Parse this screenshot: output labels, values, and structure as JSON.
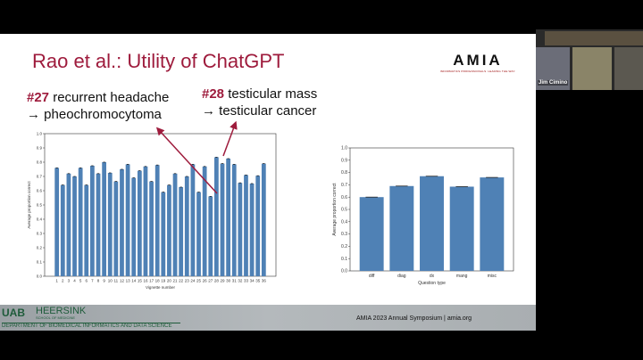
{
  "slide": {
    "title": "Rao et al.:  Utility of ChatGPT",
    "annotation_27": {
      "num": "#27",
      "line1": "recurrent headache",
      "line2": "→ pheochromocytoma"
    },
    "annotation_28": {
      "num": "#28",
      "line1": "testicular mass",
      "line2": "→ testicular cancer"
    },
    "logo": {
      "word": "AMIA",
      "tagline": "INFORMATICS PROFESSIONALS. LEADING THE WAY."
    },
    "footer": {
      "uab": "UAB",
      "school": "HEERSINK",
      "school_sub": "SCHOOL OF MEDICINE",
      "department": "DEPARTMENT OF BIOMEDICAL INFORMATICS AND DATA SCIENCE",
      "conference": "AMIA 2023 Annual Symposium |   amia.org"
    },
    "accent_color": "#9e1b3c"
  },
  "video": {
    "participant_name": "Jim Cimino"
  },
  "chart_data": [
    {
      "type": "bar",
      "xlabel": "Vignette number",
      "ylabel": "Average proportion correct",
      "ylim": [
        0,
        1.0
      ],
      "yticks": [
        "0.0",
        "0.1",
        "0.2",
        "0.3",
        "0.4",
        "0.5",
        "0.6",
        "0.7",
        "0.8",
        "0.9",
        "1.0"
      ],
      "categories": [
        "1",
        "2",
        "3",
        "4",
        "5",
        "6",
        "7",
        "8",
        "9",
        "10",
        "11",
        "12",
        "13",
        "14",
        "15",
        "16",
        "17",
        "18",
        "19",
        "20",
        "21",
        "22",
        "23",
        "24",
        "25",
        "26",
        "27",
        "28",
        "29",
        "30",
        "31",
        "32",
        "33",
        "34",
        "35",
        "36"
      ],
      "values": [
        0.76,
        0.64,
        0.72,
        0.7,
        0.76,
        0.64,
        0.775,
        0.72,
        0.8,
        0.725,
        0.665,
        0.75,
        0.785,
        0.69,
        0.74,
        0.77,
        0.665,
        0.78,
        0.59,
        0.64,
        0.72,
        0.625,
        0.7,
        0.785,
        0.59,
        0.77,
        0.56,
        0.835,
        0.79,
        0.825,
        0.785,
        0.655,
        0.71,
        0.65,
        0.705,
        0.79
      ],
      "bar_color": "#4f81b5",
      "error_bars": true
    },
    {
      "type": "bar",
      "xlabel": "Question type",
      "ylabel": "Average proportion correct",
      "ylim": [
        0,
        1.0
      ],
      "yticks": [
        "0.0",
        "0.1",
        "0.2",
        "0.3",
        "0.4",
        "0.5",
        "0.6",
        "0.7",
        "0.8",
        "0.9",
        "1.0"
      ],
      "categories": [
        "diff",
        "diag",
        "dx",
        "mang",
        "misc"
      ],
      "values": [
        0.6,
        0.69,
        0.77,
        0.685,
        0.76
      ],
      "bar_color": "#4f81b5",
      "error_bars": true
    }
  ]
}
